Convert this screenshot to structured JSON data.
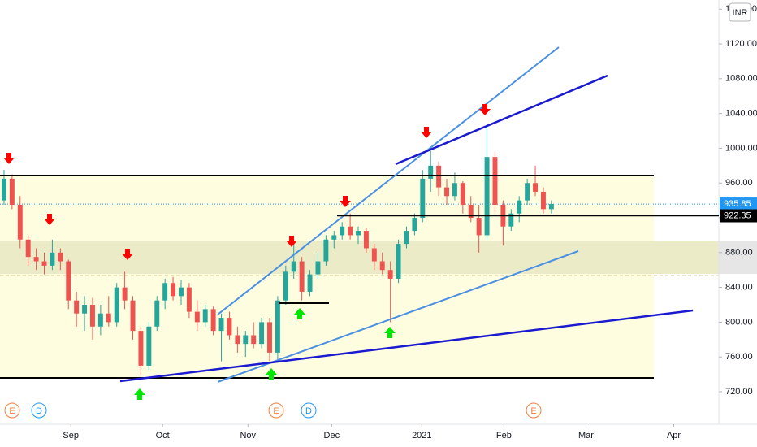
{
  "chart_data": {
    "type": "candlestick",
    "currency": "INR",
    "up_color": "#26a69a",
    "down_color": "#ef5350",
    "ylim": [
      684.5,
      1170.5
    ],
    "yticks": [
      {
        "value": 720,
        "label": "720.00"
      },
      {
        "value": 760,
        "label": "760.00"
      },
      {
        "value": 800,
        "label": "800.00"
      },
      {
        "value": 840,
        "label": "840.00"
      },
      {
        "value": 880,
        "label": "880.00"
      },
      {
        "value": 920,
        "label": "920.00"
      },
      {
        "value": 960,
        "label": "960.00"
      },
      {
        "value": 1000,
        "label": "1000.00"
      },
      {
        "value": 1040,
        "label": "1040.00"
      },
      {
        "value": 1080,
        "label": "1080.00"
      },
      {
        "value": 1120,
        "label": "1120.00"
      },
      {
        "value": 1160,
        "label": "1160.00"
      }
    ],
    "xlim": [
      -0.5,
      88.8
    ],
    "xticks": [
      {
        "value": 8.3,
        "label": "Sep"
      },
      {
        "value": 19.7,
        "label": "Oct"
      },
      {
        "value": 30.3,
        "label": "Nov"
      },
      {
        "value": 40.7,
        "label": "Dec"
      },
      {
        "value": 51.9,
        "label": "2021"
      },
      {
        "value": 62.1,
        "label": "Feb"
      },
      {
        "value": 72.3,
        "label": "Mar"
      },
      {
        "value": 83.2,
        "label": "Apr"
      }
    ],
    "candles": {
      "open": [
        940,
        965,
        935,
        895,
        875,
        870,
        865,
        880,
        870,
        825,
        810,
        820,
        795,
        810,
        800,
        840,
        825,
        790,
        750,
        795,
        825,
        845,
        830,
        840,
        812,
        800,
        815,
        790,
        805,
        785,
        775,
        785,
        775,
        800,
        765,
        825,
        858,
        870,
        835,
        855,
        870,
        895,
        900,
        910,
        900,
        905,
        885,
        870,
        860,
        850,
        890,
        905,
        920,
        965,
        980,
        955,
        945,
        960,
        935,
        920,
        900,
        990,
        935,
        910,
        925,
        940,
        960,
        950,
        930
      ],
      "high": [
        975,
        970,
        945,
        900,
        885,
        880,
        895,
        885,
        872,
        835,
        830,
        828,
        820,
        830,
        845,
        858,
        830,
        795,
        800,
        830,
        850,
        852,
        848,
        845,
        825,
        820,
        818,
        810,
        812,
        795,
        790,
        800,
        805,
        805,
        830,
        865,
        890,
        875,
        860,
        880,
        900,
        905,
        915,
        925,
        910,
        908,
        890,
        880,
        870,
        895,
        910,
        925,
        975,
        997,
        985,
        965,
        972,
        962,
        945,
        935,
        1026,
        995,
        940,
        930,
        945,
        965,
        980,
        955,
        940
      ],
      "low": [
        935,
        930,
        885,
        865,
        860,
        855,
        860,
        860,
        815,
        795,
        790,
        780,
        785,
        795,
        795,
        815,
        780,
        738,
        745,
        790,
        815,
        825,
        820,
        805,
        790,
        795,
        785,
        755,
        780,
        765,
        760,
        770,
        770,
        755,
        755,
        820,
        850,
        825,
        830,
        850,
        865,
        885,
        895,
        895,
        890,
        880,
        860,
        855,
        800,
        845,
        885,
        900,
        915,
        950,
        945,
        935,
        940,
        925,
        915,
        880,
        895,
        925,
        888,
        905,
        915,
        935,
        945,
        925,
        925
      ],
      "close": [
        965,
        935,
        895,
        875,
        870,
        865,
        880,
        870,
        825,
        810,
        820,
        795,
        810,
        800,
        840,
        825,
        790,
        750,
        795,
        825,
        845,
        830,
        840,
        812,
        800,
        815,
        790,
        805,
        785,
        775,
        785,
        775,
        800,
        765,
        825,
        858,
        870,
        835,
        855,
        870,
        895,
        900,
        910,
        900,
        905,
        885,
        870,
        860,
        850,
        890,
        905,
        920,
        965,
        980,
        955,
        945,
        960,
        935,
        920,
        900,
        990,
        935,
        910,
        925,
        940,
        960,
        950,
        930,
        935.85
      ]
    },
    "last_price": 935.85,
    "marked_price": 922.35,
    "events": [
      "E",
      "D",
      "E",
      "D",
      "E"
    ]
  }
}
